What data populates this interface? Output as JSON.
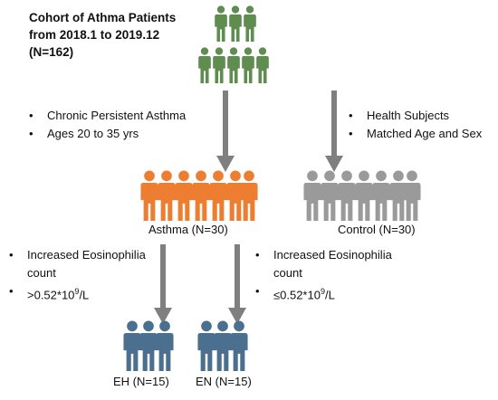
{
  "title_lines": [
    "Cohort of Athma Patients",
    "from 2018.1 to 2019.12",
    "(N=162)"
  ],
  "left_criteria": [
    "Chronic Persistent Asthma",
    "Ages 20 to 35 yrs"
  ],
  "right_criteria": [
    "Health Subjects",
    "Matched Age and Sex"
  ],
  "asthma_label": "Asthma (N=30)",
  "control_label": "Control (N=30)",
  "eh_criteria": {
    "line1": "Increased Eosinophilia",
    "line2": "count",
    "threshold": ">0.52*10",
    "sup": "9",
    "unit": "/L"
  },
  "en_criteria": {
    "line1": "Increased Eosinophilia",
    "line2": "count",
    "threshold": "≤0.52*10",
    "sup": "9",
    "unit": "/L"
  },
  "eh_label": "EH (N=15)",
  "en_label": "EN (N=15)",
  "colors": {
    "cohort": "#5f8c4f",
    "asthma": "#ed7d31",
    "control": "#9a9a9a",
    "subgroup": "#4a6f8f",
    "arrow": "#7f7f7f"
  }
}
